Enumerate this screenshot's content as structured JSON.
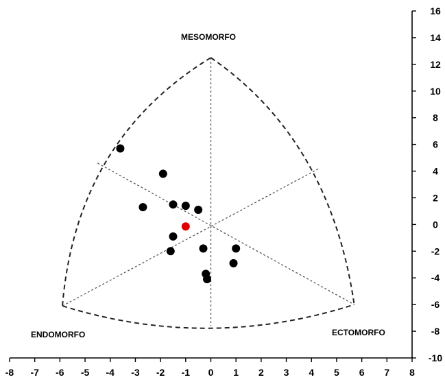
{
  "chart_data": {
    "type": "scatter",
    "title": "",
    "xlabel": "",
    "ylabel": "",
    "xlim": [
      -8,
      8
    ],
    "ylim": [
      -10,
      16
    ],
    "x_ticks": [
      "-8",
      "-7",
      "-6",
      "-5",
      "-4",
      "-3",
      "-2",
      "-1",
      "0",
      "1",
      "2",
      "3",
      "4",
      "5",
      "6",
      "7",
      "8"
    ],
    "y_ticks": [
      "16",
      "14",
      "12",
      "10",
      "8",
      "6",
      "4",
      "2",
      "0",
      "-2",
      "-4",
      "-6",
      "-8",
      "-10"
    ],
    "region_labels": {
      "mesomorph": "MESOMORFO",
      "endomorph": "ENDOMORFO",
      "ectomorph": "ECTOMORFO"
    },
    "triangle_vertices": {
      "top": [
        0,
        12.5
      ],
      "bottom_left": [
        -5.9,
        -6.1
      ],
      "bottom_right": [
        5.7,
        -6.0
      ]
    },
    "series": [
      {
        "color": "#000000",
        "points": [
          [
            -3.6,
            5.7
          ],
          [
            -1.9,
            3.8
          ],
          [
            -2.7,
            1.3
          ],
          [
            -1.5,
            1.5
          ],
          [
            -1.0,
            1.4
          ],
          [
            -0.5,
            1.1
          ],
          [
            -1.5,
            -0.9
          ],
          [
            -1.6,
            -2.0
          ],
          [
            -0.3,
            -1.8
          ],
          [
            1.0,
            -1.8
          ],
          [
            0.9,
            -2.9
          ],
          [
            -0.2,
            -3.7
          ],
          [
            -0.15,
            -4.1
          ]
        ]
      },
      {
        "color": "#e00000",
        "points": [
          [
            -1.0,
            -0.15
          ]
        ]
      }
    ]
  }
}
